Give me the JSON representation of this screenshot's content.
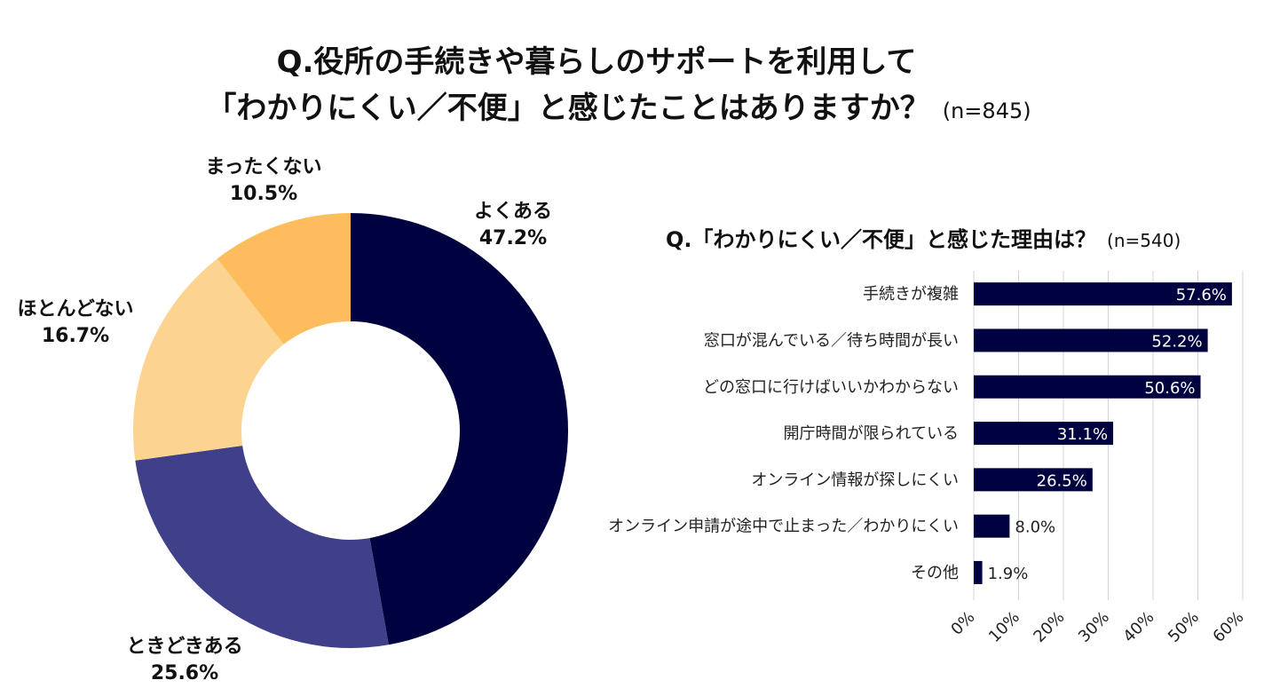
{
  "header": {
    "title_line1": "Q.役所の手続きや暮らしのサポートを利用して",
    "title_line2": "「わかりにくい／不便」と感じたことはありますか？",
    "sample": "(n=845)"
  },
  "chart_data": [
    {
      "type": "pie",
      "variant": "donut",
      "title": "Q.役所の手続きや暮らしのサポートを利用して「わかりにくい／不便」と感じたことはありますか？",
      "sample": "(n=845)",
      "unit": "%",
      "slices": [
        {
          "label": "よくある",
          "value": 47.2,
          "value_text": "47.2%",
          "color": "#000240"
        },
        {
          "label": "ときどきある",
          "value": 25.6,
          "value_text": "25.6%",
          "color": "#3f3f8a"
        },
        {
          "label": "ほとんどない",
          "value": 16.7,
          "value_text": "16.7%",
          "color": "#fdd48f"
        },
        {
          "label": "まったくない",
          "value": 10.5,
          "value_text": "10.5%",
          "color": "#fdbd5c"
        }
      ]
    },
    {
      "type": "bar",
      "orientation": "horizontal",
      "title": "Q.「わかりにくい／不便」と感じた理由は？",
      "sample": "(n=540)",
      "categories": [
        "手続きが複雑",
        "窓口が混んでいる／待ち時間が長い",
        "どの窓口に行けばいいかわからない",
        "開庁時間が限られている",
        "オンライン情報が探しにくい",
        "オンライン申請が途中で止まった／わかりにくい",
        "その他"
      ],
      "values": [
        57.6,
        52.2,
        50.6,
        31.1,
        26.5,
        8.0,
        1.9
      ],
      "value_labels": [
        "57.6%",
        "52.2%",
        "50.6%",
        "31.1%",
        "26.5%",
        "8.0%",
        "1.9%"
      ],
      "xlim": [
        0,
        60
      ],
      "x_ticks": [
        0,
        10,
        20,
        30,
        40,
        50,
        60
      ],
      "x_tick_labels": [
        "0%",
        "10%",
        "20%",
        "30%",
        "40%",
        "50%",
        "60%"
      ],
      "grid": true,
      "bar_color": "#000240"
    }
  ]
}
